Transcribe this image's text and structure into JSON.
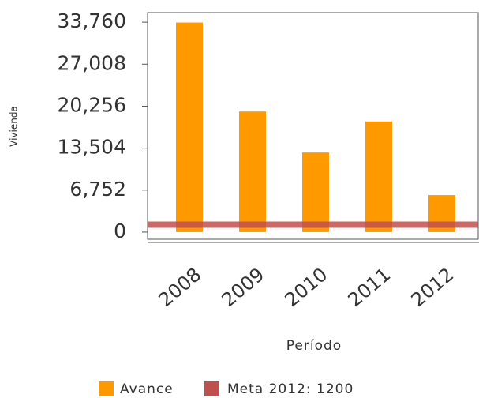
{
  "chart_data": {
    "type": "bar",
    "y_axis_label": "Vivienda",
    "x_axis_label": "Período",
    "categories": [
      "2008",
      "2009",
      "2010",
      "2011",
      "2012"
    ],
    "series": [
      {
        "name": "Avance",
        "color": "#ff9900",
        "values": [
          33700,
          19400,
          12800,
          17800,
          5950
        ]
      }
    ],
    "target": {
      "name": "Meta 2012: 1200",
      "value": 1200,
      "color": "#c0504d"
    },
    "ylim": [
      -1150,
      35300
    ],
    "yticks": [
      0,
      {
        "value": 6752,
        "label": "6,752"
      },
      {
        "value": 13504,
        "label": "13,504"
      },
      {
        "value": 20256,
        "label": "20,256"
      },
      {
        "value": 27008,
        "label": "27,008"
      },
      {
        "value": 33760,
        "label": "33,760"
      }
    ]
  }
}
